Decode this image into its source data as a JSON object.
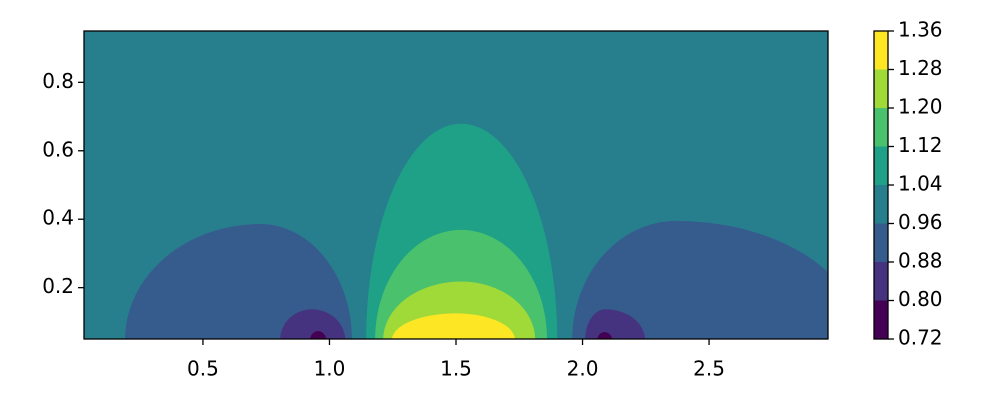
{
  "chart_data": {
    "type": "contourf",
    "xlim": [
      0.03,
      2.97
    ],
    "ylim": [
      0.05,
      0.95
    ],
    "xticks": [
      0.5,
      {
        "value": 1.0,
        "label": "1.0"
      },
      1.5,
      {
        "value": 2.0,
        "label": "2.0"
      },
      2.5
    ],
    "yticks": [
      0.2,
      0.4,
      0.6,
      0.8
    ],
    "levels": [
      0.72,
      {
        "value": 0.8,
        "label": "0.80"
      },
      0.88,
      0.96,
      1.04,
      1.12,
      {
        "value": 1.2,
        "label": "1.20"
      },
      1.28,
      1.36
    ],
    "colors": [
      "#440154",
      "#46337f",
      "#365c8d",
      "#277f8e",
      "#1fa187",
      "#4ac16d",
      "#a0da39",
      "#fde725"
    ],
    "background_level": 3,
    "regions": [
      {
        "level": 4,
        "x0": 1.145,
        "x1": 1.9,
        "peak_x": 1.52,
        "peak_y": 0.679
      },
      {
        "level": 5,
        "x0": 1.18,
        "x1": 1.86,
        "peak_x": 1.52,
        "peak_y": 0.369
      },
      {
        "level": 6,
        "x0": 1.212,
        "x1": 1.813,
        "peak_x": 1.52,
        "peak_y": 0.218
      },
      {
        "level": 7,
        "x0": 1.247,
        "x1": 1.733,
        "peak_x": 1.5,
        "peak_y": 0.125
      },
      {
        "level": 2,
        "x0": 0.192,
        "x1": 1.089,
        "peak_x": 0.726,
        "peak_y": 0.386
      },
      {
        "level": 2,
        "x0": 1.959,
        "x1": 3.1,
        "peak_x": 2.37,
        "peak_y": 0.395
      },
      {
        "level": 1,
        "x0": 0.805,
        "x1": 1.062,
        "peak_x": 0.93,
        "peak_y": 0.137
      },
      {
        "level": 1,
        "x0": 2.01,
        "x1": 2.247,
        "peak_x": 2.09,
        "peak_y": 0.137
      },
      {
        "level": 0,
        "x0": 0.923,
        "x1": 0.987,
        "peak_x": 0.955,
        "peak_y": 0.073
      },
      {
        "level": 0,
        "x0": 2.058,
        "x1": 2.117,
        "peak_x": 2.087,
        "peak_y": 0.07
      }
    ]
  }
}
